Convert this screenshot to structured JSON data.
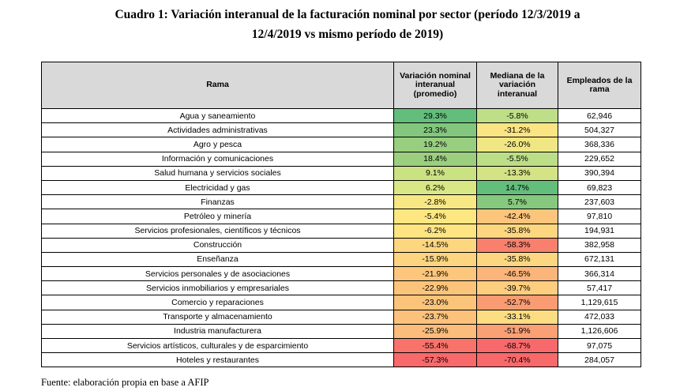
{
  "title": {
    "line1": "Cuadro 1: Variación interanual de la facturación nominal por sector (período 12/3/2019 a",
    "line2": "12/4/2019 vs mismo período de 2019)"
  },
  "table": {
    "headers": {
      "rama": "Rama",
      "variacion": "Variación nominal interanual (promedio)",
      "mediana": "Mediana de la variación interanual",
      "empleados": "Empleados de la rama"
    },
    "rows": [
      {
        "rama": "Agua y saneamiento",
        "variacion": "29.3%",
        "mediana": "-5.8%",
        "empleados": "62,946",
        "var_color": "#63be7b",
        "med_color": "#bedf87"
      },
      {
        "rama": "Actividades administrativas",
        "variacion": "23.3%",
        "mediana": "-31.2%",
        "empleados": "504,327",
        "var_color": "#82c77d",
        "med_color": "#fbe483"
      },
      {
        "rama": "Agro y pesca",
        "variacion": "19.2%",
        "mediana": "-26.0%",
        "empleados": "368,336",
        "var_color": "#98ce7f",
        "med_color": "#f0e784"
      },
      {
        "rama": "Información y comunicaciones",
        "variacion": "18.4%",
        "mediana": "-5.5%",
        "empleados": "229,652",
        "var_color": "#9bcf7f",
        "med_color": "#bcde86"
      },
      {
        "rama": "Salud humana y servicios sociales",
        "variacion": "9.1%",
        "mediana": "-13.3%",
        "empleados": "390,394",
        "var_color": "#cbe283",
        "med_color": "#d4e384"
      },
      {
        "rama": "Electricidad y gas",
        "variacion": "6.2%",
        "mediana": "14.7%",
        "empleados": "69,823",
        "var_color": "#d9e784",
        "med_color": "#63be7b"
      },
      {
        "rama": "Finanzas",
        "variacion": "-2.8%",
        "mediana": "5.7%",
        "empleados": "237,603",
        "var_color": "#f7e883",
        "med_color": "#86c87d"
      },
      {
        "rama": "Petróleo y minería",
        "variacion": "-5.4%",
        "mediana": "-42.4%",
        "empleados": "97,810",
        "var_color": "#fee683",
        "med_color": "#fcc57c"
      },
      {
        "rama": "Servicios profesionales, científicos y técnicos",
        "variacion": "-6.2%",
        "mediana": "-35.8%",
        "empleados": "194,931",
        "var_color": "#fee582",
        "med_color": "#fcd780"
      },
      {
        "rama": "Construcción",
        "variacion": "-14.5%",
        "mediana": "-58.3%",
        "empleados": "382,958",
        "var_color": "#fdd680",
        "med_color": "#f8806d"
      },
      {
        "rama": "Enseñanza",
        "variacion": "-15.9%",
        "mediana": "-35.8%",
        "empleados": "672,131",
        "var_color": "#fdd47f",
        "med_color": "#fcd780"
      },
      {
        "rama": "Servicios personales y de asociaciones",
        "variacion": "-21.9%",
        "mediana": "-46.5%",
        "empleados": "366,314",
        "var_color": "#fcc67c",
        "med_color": "#fbb479"
      },
      {
        "rama": "Servicios inmobiliarios y empresariales",
        "variacion": "-22.9%",
        "mediana": "-39.7%",
        "empleados": "57,417",
        "var_color": "#fcc47b",
        "med_color": "#fcce7e"
      },
      {
        "rama": "Comercio y reparaciones",
        "variacion": "-23.0%",
        "mediana": "-52.7%",
        "empleados": "1,129,615",
        "var_color": "#fcc47b",
        "med_color": "#fa9c73"
      },
      {
        "rama": "Transporte y almacenamiento",
        "variacion": "-23.7%",
        "mediana": "-33.1%",
        "empleados": "472,033",
        "var_color": "#fcc27b",
        "med_color": "#fddd81"
      },
      {
        "rama": "Industria manufacturera",
        "variacion": "-25.9%",
        "mediana": "-51.9%",
        "empleados": "1,126,606",
        "var_color": "#fcbd7a",
        "med_color": "#faa075"
      },
      {
        "rama": "Servicios artísticos, culturales y de esparcimiento",
        "variacion": "-55.4%",
        "mediana": "-68.7%",
        "empleados": "97,075",
        "var_color": "#f8736b",
        "med_color": "#f8696b"
      },
      {
        "rama": "Hoteles y restaurantes",
        "variacion": "-57.3%",
        "mediana": "-70.4%",
        "empleados": "284,057",
        "var_color": "#f8696b",
        "med_color": "#f8696b"
      }
    ]
  },
  "footer": "Fuente: elaboración propia en base a AFIP"
}
